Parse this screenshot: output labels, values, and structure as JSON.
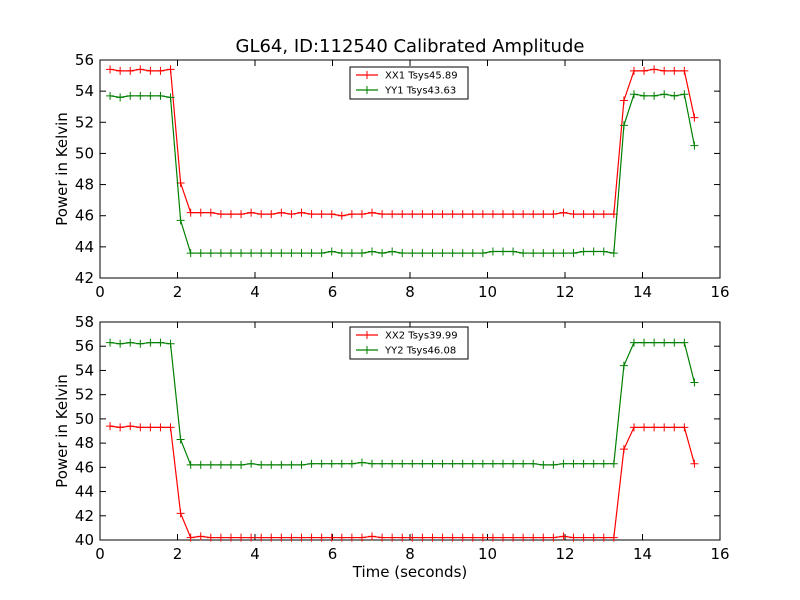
{
  "figure": {
    "title": "GL64, ID:112540 Calibrated Amplitude"
  },
  "chart_data": [
    {
      "type": "line",
      "xlabel": "",
      "ylabel": "Power in Kelvin",
      "xlim": [
        0,
        16
      ],
      "ylim": [
        42,
        56
      ],
      "xticks": [
        "0",
        "2",
        "4",
        "6",
        "8",
        "10",
        "12",
        "14",
        "16"
      ],
      "yticks": [
        "42",
        "44",
        "46",
        "48",
        "50",
        "52",
        "54",
        "56"
      ],
      "grid": false,
      "legend_position": "top-center",
      "x": [
        0.26,
        0.52,
        0.78,
        1.04,
        1.3,
        1.56,
        1.82,
        2.08,
        2.34,
        2.6,
        2.86,
        3.12,
        3.38,
        3.64,
        3.9,
        4.16,
        4.42,
        4.68,
        4.94,
        5.2,
        5.46,
        5.72,
        5.98,
        6.24,
        6.5,
        6.76,
        7.02,
        7.28,
        7.54,
        7.8,
        8.06,
        8.32,
        8.58,
        8.84,
        9.1,
        9.36,
        9.62,
        9.88,
        10.14,
        10.4,
        10.66,
        10.92,
        11.18,
        11.44,
        11.7,
        11.96,
        12.22,
        12.48,
        12.74,
        13.0,
        13.26,
        13.52,
        13.78,
        14.04,
        14.3,
        14.56,
        14.82,
        15.08,
        15.34
      ],
      "series": [
        {
          "name": "XX1 Tsys45.89",
          "color": "#ff0000",
          "values": [
            55.4,
            55.3,
            55.3,
            55.4,
            55.3,
            55.3,
            55.4,
            48.1,
            46.2,
            46.2,
            46.2,
            46.1,
            46.1,
            46.1,
            46.2,
            46.1,
            46.1,
            46.2,
            46.1,
            46.2,
            46.1,
            46.1,
            46.1,
            46.0,
            46.1,
            46.1,
            46.2,
            46.1,
            46.1,
            46.1,
            46.1,
            46.1,
            46.1,
            46.1,
            46.1,
            46.1,
            46.1,
            46.1,
            46.1,
            46.1,
            46.1,
            46.1,
            46.1,
            46.1,
            46.1,
            46.2,
            46.1,
            46.1,
            46.1,
            46.1,
            46.1,
            53.4,
            55.3,
            55.3,
            55.4,
            55.3,
            55.3,
            55.3,
            52.3
          ]
        },
        {
          "name": "YY1 Tsys43.63",
          "color": "#008000",
          "values": [
            53.7,
            53.6,
            53.7,
            53.7,
            53.7,
            53.7,
            53.6,
            45.7,
            43.6,
            43.6,
            43.6,
            43.6,
            43.6,
            43.6,
            43.6,
            43.6,
            43.6,
            43.6,
            43.6,
            43.6,
            43.6,
            43.6,
            43.7,
            43.6,
            43.6,
            43.6,
            43.7,
            43.6,
            43.7,
            43.6,
            43.6,
            43.6,
            43.6,
            43.6,
            43.6,
            43.6,
            43.6,
            43.6,
            43.7,
            43.7,
            43.7,
            43.6,
            43.6,
            43.6,
            43.6,
            43.6,
            43.6,
            43.7,
            43.7,
            43.7,
            43.6,
            51.8,
            53.8,
            53.7,
            53.7,
            53.8,
            53.7,
            53.8,
            50.5
          ]
        }
      ]
    },
    {
      "type": "line",
      "xlabel": "Time (seconds)",
      "ylabel": "Power in Kelvin",
      "xlim": [
        0,
        16
      ],
      "ylim": [
        40,
        58
      ],
      "xticks": [
        "0",
        "2",
        "4",
        "6",
        "8",
        "10",
        "12",
        "14",
        "16"
      ],
      "yticks": [
        "40",
        "42",
        "44",
        "46",
        "48",
        "50",
        "52",
        "54",
        "56",
        "58"
      ],
      "grid": false,
      "legend_position": "top-center",
      "x": [
        0.26,
        0.52,
        0.78,
        1.04,
        1.3,
        1.56,
        1.82,
        2.08,
        2.34,
        2.6,
        2.86,
        3.12,
        3.38,
        3.64,
        3.9,
        4.16,
        4.42,
        4.68,
        4.94,
        5.2,
        5.46,
        5.72,
        5.98,
        6.24,
        6.5,
        6.76,
        7.02,
        7.28,
        7.54,
        7.8,
        8.06,
        8.32,
        8.58,
        8.84,
        9.1,
        9.36,
        9.62,
        9.88,
        10.14,
        10.4,
        10.66,
        10.92,
        11.18,
        11.44,
        11.7,
        11.96,
        12.22,
        12.48,
        12.74,
        13.0,
        13.26,
        13.52,
        13.78,
        14.04,
        14.3,
        14.56,
        14.82,
        15.08,
        15.34
      ],
      "series": [
        {
          "name": "XX2 Tsys39.99",
          "color": "#ff0000",
          "values": [
            49.4,
            49.3,
            49.4,
            49.3,
            49.3,
            49.3,
            49.3,
            42.2,
            40.2,
            40.3,
            40.2,
            40.2,
            40.2,
            40.2,
            40.2,
            40.2,
            40.2,
            40.2,
            40.2,
            40.2,
            40.2,
            40.2,
            40.2,
            40.2,
            40.2,
            40.2,
            40.3,
            40.2,
            40.2,
            40.2,
            40.2,
            40.2,
            40.2,
            40.2,
            40.2,
            40.2,
            40.2,
            40.2,
            40.2,
            40.2,
            40.2,
            40.2,
            40.2,
            40.2,
            40.2,
            40.3,
            40.2,
            40.2,
            40.2,
            40.2,
            40.2,
            47.5,
            49.3,
            49.3,
            49.3,
            49.3,
            49.3,
            49.3,
            46.3
          ]
        },
        {
          "name": "YY2 Tsys46.08",
          "color": "#008000",
          "values": [
            56.3,
            56.2,
            56.3,
            56.2,
            56.3,
            56.3,
            56.2,
            48.3,
            46.2,
            46.2,
            46.2,
            46.2,
            46.2,
            46.2,
            46.3,
            46.2,
            46.2,
            46.2,
            46.2,
            46.2,
            46.3,
            46.3,
            46.3,
            46.3,
            46.3,
            46.4,
            46.3,
            46.3,
            46.3,
            46.3,
            46.3,
            46.3,
            46.3,
            46.3,
            46.3,
            46.3,
            46.3,
            46.3,
            46.3,
            46.3,
            46.3,
            46.3,
            46.3,
            46.2,
            46.2,
            46.3,
            46.3,
            46.3,
            46.3,
            46.3,
            46.3,
            54.4,
            56.3,
            56.3,
            56.3,
            56.3,
            56.3,
            56.3,
            53.0
          ]
        }
      ]
    }
  ]
}
